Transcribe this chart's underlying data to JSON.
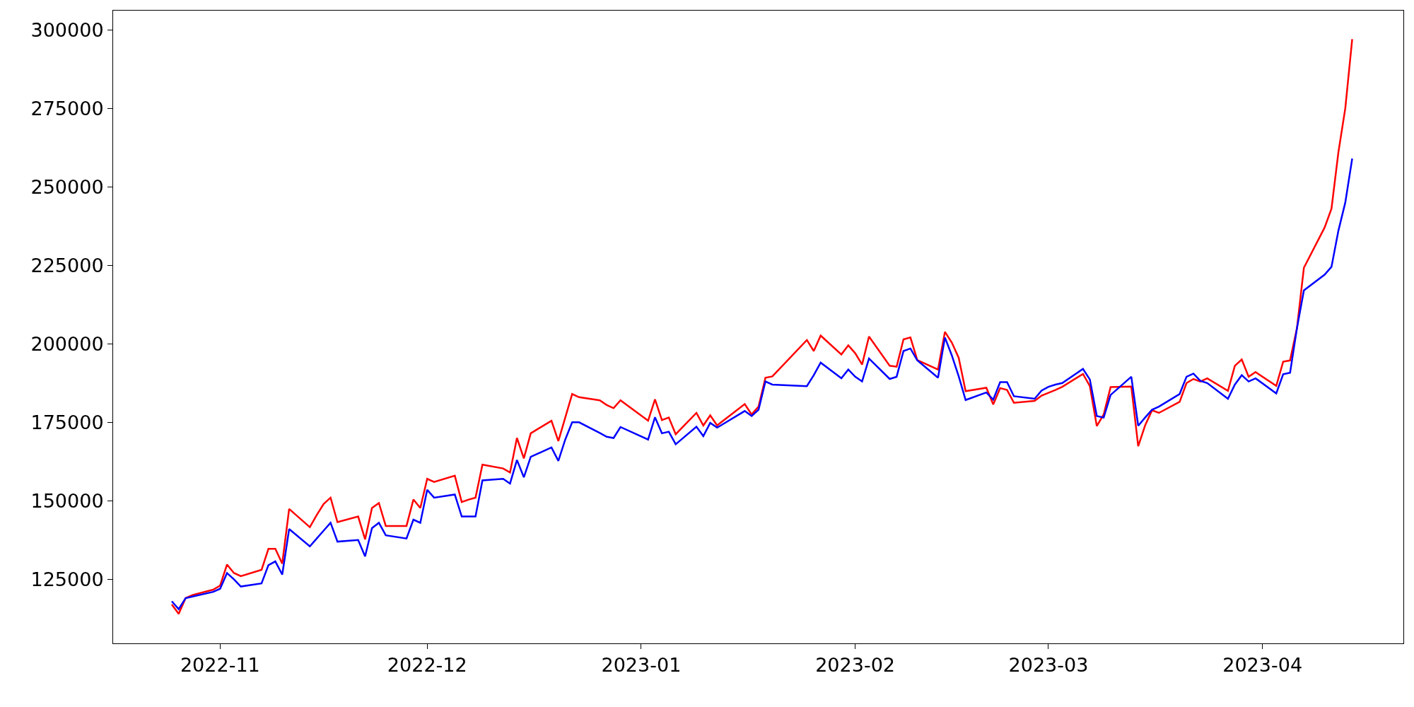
{
  "chart_data": {
    "type": "line",
    "x": [
      "2022-10-25",
      "2022-10-26",
      "2022-10-27",
      "2022-10-28",
      "2022-10-31",
      "2022-11-01",
      "2022-11-02",
      "2022-11-03",
      "2022-11-04",
      "2022-11-07",
      "2022-11-08",
      "2022-11-09",
      "2022-11-10",
      "2022-11-11",
      "2022-11-14",
      "2022-11-15",
      "2022-11-16",
      "2022-11-17",
      "2022-11-18",
      "2022-11-21",
      "2022-11-22",
      "2022-11-23",
      "2022-11-24",
      "2022-11-25",
      "2022-11-28",
      "2022-11-29",
      "2022-11-30",
      "2022-12-01",
      "2022-12-02",
      "2022-12-05",
      "2022-12-06",
      "2022-12-07",
      "2022-12-08",
      "2022-12-09",
      "2022-12-12",
      "2022-12-13",
      "2022-12-14",
      "2022-12-15",
      "2022-12-16",
      "2022-12-19",
      "2022-12-20",
      "2022-12-21",
      "2022-12-22",
      "2022-12-23",
      "2022-12-26",
      "2022-12-27",
      "2022-12-28",
      "2022-12-29",
      "2023-01-02",
      "2023-01-03",
      "2023-01-04",
      "2023-01-05",
      "2023-01-06",
      "2023-01-09",
      "2023-01-10",
      "2023-01-11",
      "2023-01-12",
      "2023-01-16",
      "2023-01-17",
      "2023-01-18",
      "2023-01-19",
      "2023-01-20",
      "2023-01-25",
      "2023-01-26",
      "2023-01-27",
      "2023-01-30",
      "2023-01-31",
      "2023-02-01",
      "2023-02-02",
      "2023-02-03",
      "2023-02-06",
      "2023-02-07",
      "2023-02-08",
      "2023-02-09",
      "2023-02-10",
      "2023-02-13",
      "2023-02-14",
      "2023-02-15",
      "2023-02-16",
      "2023-02-17",
      "2023-02-20",
      "2023-02-21",
      "2023-02-22",
      "2023-02-23",
      "2023-02-24",
      "2023-02-27",
      "2023-02-28",
      "2023-03-01",
      "2023-03-02",
      "2023-03-03",
      "2023-03-06",
      "2023-03-07",
      "2023-03-08",
      "2023-03-09",
      "2023-03-10",
      "2023-03-13",
      "2023-03-14",
      "2023-03-15",
      "2023-03-16",
      "2023-03-17",
      "2023-03-20",
      "2023-03-21",
      "2023-03-22",
      "2023-03-23",
      "2023-03-24",
      "2023-03-27",
      "2023-03-28",
      "2023-03-29",
      "2023-03-30",
      "2023-03-31",
      "2023-04-03",
      "2023-04-04",
      "2023-04-05",
      "2023-04-06",
      "2023-04-07",
      "2023-04-10",
      "2023-04-11",
      "2023-04-12",
      "2023-04-13",
      "2023-04-14"
    ],
    "series": [
      {
        "color": "#ff0000",
        "values": [
          117000,
          114000,
          119000,
          120000,
          121700,
          123000,
          129700,
          127000,
          126000,
          128000,
          134700,
          134700,
          130000,
          147400,
          141600,
          145500,
          149000,
          151000,
          143200,
          145000,
          137700,
          147700,
          149300,
          142000,
          142000,
          150400,
          147700,
          157000,
          156000,
          158000,
          149600,
          150400,
          151000,
          161500,
          160300,
          159000,
          170000,
          163500,
          171500,
          175500,
          169000,
          176500,
          184000,
          183000,
          182000,
          180500,
          179500,
          182000,
          175500,
          182300,
          175700,
          176500,
          171200,
          178000,
          174000,
          177200,
          174000,
          180800,
          177500,
          180000,
          189200,
          189600,
          201200,
          197700,
          202600,
          196600,
          199500,
          197000,
          193400,
          202300,
          193000,
          192700,
          201400,
          202000,
          194800,
          191800,
          203800,
          200400,
          195500,
          184900,
          186000,
          180700,
          185900,
          185300,
          181200,
          181800,
          183500,
          184400,
          185300,
          186300,
          190400,
          186500,
          173800,
          177500,
          186200,
          186400,
          167400,
          174000,
          178800,
          178000,
          181500,
          187500,
          188800,
          188000,
          189000,
          185000,
          193000,
          195000,
          189500,
          191000,
          186600,
          194300,
          194700,
          205000,
          224200,
          237000,
          243000,
          261000,
          275000,
          297000
        ]
      },
      {
        "color": "#0000ff",
        "values": [
          118000,
          115500,
          119000,
          119500,
          121000,
          122000,
          127000,
          125000,
          122700,
          123700,
          129500,
          130700,
          126500,
          141000,
          135500,
          138000,
          140500,
          143000,
          137000,
          137500,
          132300,
          141300,
          143000,
          139000,
          138000,
          144000,
          143000,
          153500,
          151000,
          152000,
          145000,
          145000,
          145000,
          156500,
          157000,
          155500,
          163000,
          157500,
          164000,
          167000,
          162700,
          169500,
          175000,
          175000,
          171600,
          170400,
          170000,
          173500,
          169500,
          176600,
          171500,
          172000,
          168000,
          173600,
          170600,
          174800,
          173300,
          178600,
          177000,
          179000,
          188000,
          187000,
          186500,
          190000,
          194000,
          189000,
          191800,
          189500,
          188000,
          195300,
          188800,
          189500,
          197700,
          198500,
          194700,
          189200,
          202000,
          196300,
          189600,
          182100,
          184500,
          182200,
          187800,
          187800,
          183300,
          182500,
          185100,
          186300,
          187000,
          187500,
          192000,
          188600,
          177000,
          176500,
          183700,
          189500,
          173900,
          176500,
          179000,
          180000,
          184000,
          189500,
          190500,
          188200,
          187500,
          182500,
          187000,
          190000,
          188000,
          189000,
          184200,
          190300,
          190800,
          205000,
          217000,
          222000,
          224500,
          236000,
          245000,
          259000
        ]
      }
    ],
    "xlim": [
      "2022-10-16T12:00",
      "2023-04-21T10:00"
    ],
    "ylim": [
      104600,
      306100
    ],
    "xticks": [
      {
        "value": "2022-11-01",
        "label": "2022-11"
      },
      {
        "value": "2022-12-01",
        "label": "2022-12"
      },
      {
        "value": "2023-01-01",
        "label": "2023-01"
      },
      {
        "value": "2023-02-01",
        "label": "2023-02"
      },
      {
        "value": "2023-03-01",
        "label": "2023-03"
      },
      {
        "value": "2023-04-01",
        "label": "2023-04"
      }
    ],
    "yticks": [
      125000,
      150000,
      175000,
      200000,
      225000,
      250000,
      275000,
      300000
    ]
  }
}
